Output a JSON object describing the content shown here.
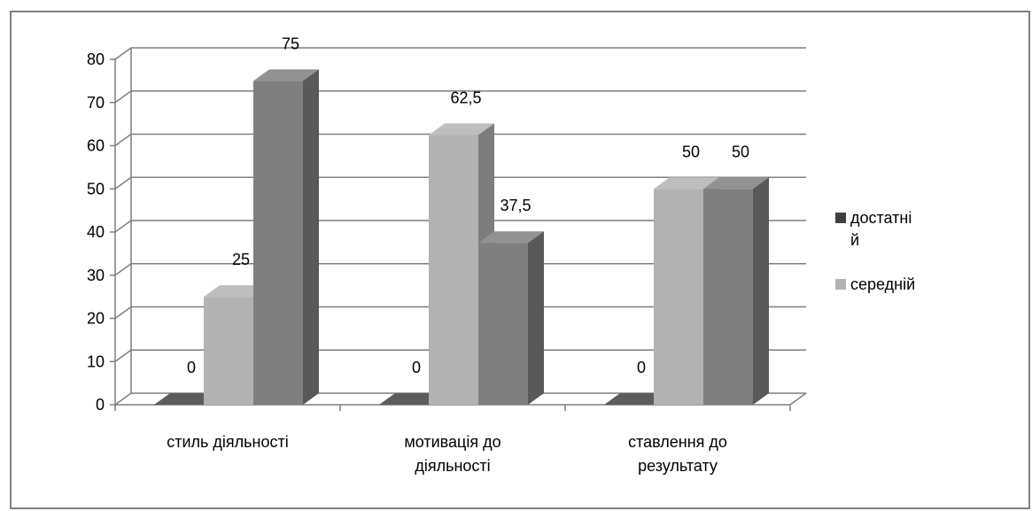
{
  "chart_data": {
    "type": "bar",
    "three_d": true,
    "categories": [
      [
        "стиль діяльності"
      ],
      [
        "мотивація до",
        "діяльності"
      ],
      [
        "ставлення до",
        "результату"
      ]
    ],
    "series": [
      {
        "name_lines": [
          "достатні",
          "й"
        ],
        "values": [
          0,
          0,
          0
        ],
        "labels": [
          "0",
          "0",
          "0"
        ],
        "color": "#3f3f3f"
      },
      {
        "name_lines": [
          "середній"
        ],
        "values": [
          25,
          62.5,
          50
        ],
        "labels": [
          "25",
          "62,5",
          "50"
        ],
        "color": "#b2b2b2"
      },
      {
        "name_lines": [],
        "values": [
          75,
          37.5,
          50
        ],
        "labels": [
          "75",
          "37,5",
          "50"
        ],
        "color": "#7f7f7f"
      }
    ],
    "legend": [
      {
        "lines": [
          "достатні",
          "й"
        ],
        "color": "#3f3f3f"
      },
      {
        "lines": [
          "середній"
        ],
        "color": "#b2b2b2"
      }
    ],
    "yticks": [
      "0",
      "10",
      "20",
      "30",
      "40",
      "50",
      "60",
      "70",
      "80"
    ],
    "ylim": [
      0,
      80
    ],
    "grid": true,
    "legend_position": "right"
  }
}
